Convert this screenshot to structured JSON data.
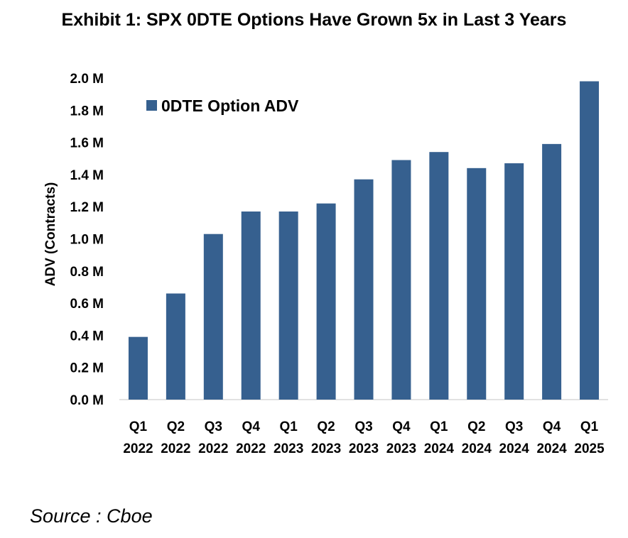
{
  "chart_data": {
    "type": "bar",
    "title": "Exhibit 1: SPX 0DTE Options Have Grown 5x in Last 3 Years",
    "xlabel": "",
    "ylabel": "ADV (Contracts)",
    "ylim": [
      0,
      2.0
    ],
    "yticks": [
      "0.0 M",
      "0.2 M",
      "0.4 M",
      "0.6 M",
      "0.8 M",
      "1.0 M",
      "1.2 M",
      "1.4 M",
      "1.6 M",
      "1.8 M",
      "2.0 M"
    ],
    "categories": [
      [
        "Q1",
        "2022"
      ],
      [
        "Q2",
        "2022"
      ],
      [
        "Q3",
        "2022"
      ],
      [
        "Q4",
        "2022"
      ],
      [
        "Q1",
        "2023"
      ],
      [
        "Q2",
        "2023"
      ],
      [
        "Q3",
        "2023"
      ],
      [
        "Q4",
        "2023"
      ],
      [
        "Q1",
        "2024"
      ],
      [
        "Q2",
        "2024"
      ],
      [
        "Q3",
        "2024"
      ],
      [
        "Q4",
        "2024"
      ],
      [
        "Q1",
        "2025"
      ]
    ],
    "series": [
      {
        "name": "0DTE Option ADV",
        "color": "#36608F",
        "values": [
          0.39,
          0.66,
          1.03,
          1.17,
          1.17,
          1.22,
          1.37,
          1.49,
          1.54,
          1.44,
          1.47,
          1.59,
          1.98
        ]
      }
    ],
    "legend": "top-left",
    "grid": false
  },
  "source": "Source : Cboe"
}
